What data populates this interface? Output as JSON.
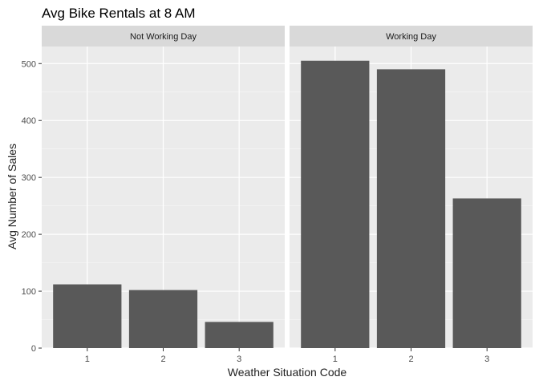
{
  "chart_data": {
    "type": "bar",
    "title": "Avg Bike Rentals at 8 AM",
    "xlabel": "Weather Situation Code",
    "ylabel": "Avg Number of Sales",
    "categories": [
      "1",
      "2",
      "3"
    ],
    "ylim": [
      0,
      530
    ],
    "yticks": [
      0,
      100,
      200,
      300,
      400,
      500
    ],
    "grid": true,
    "facets": [
      {
        "label": "Not Working Day",
        "values": [
          112,
          102,
          46
        ]
      },
      {
        "label": "Working Day",
        "values": [
          505,
          490,
          263
        ]
      }
    ],
    "colors": {
      "bar": "#595959",
      "panel": "#ebebeb",
      "strip": "#d9d9d9",
      "grid_major": "#ffffff",
      "grid_minor": "#f5f5f5"
    }
  }
}
